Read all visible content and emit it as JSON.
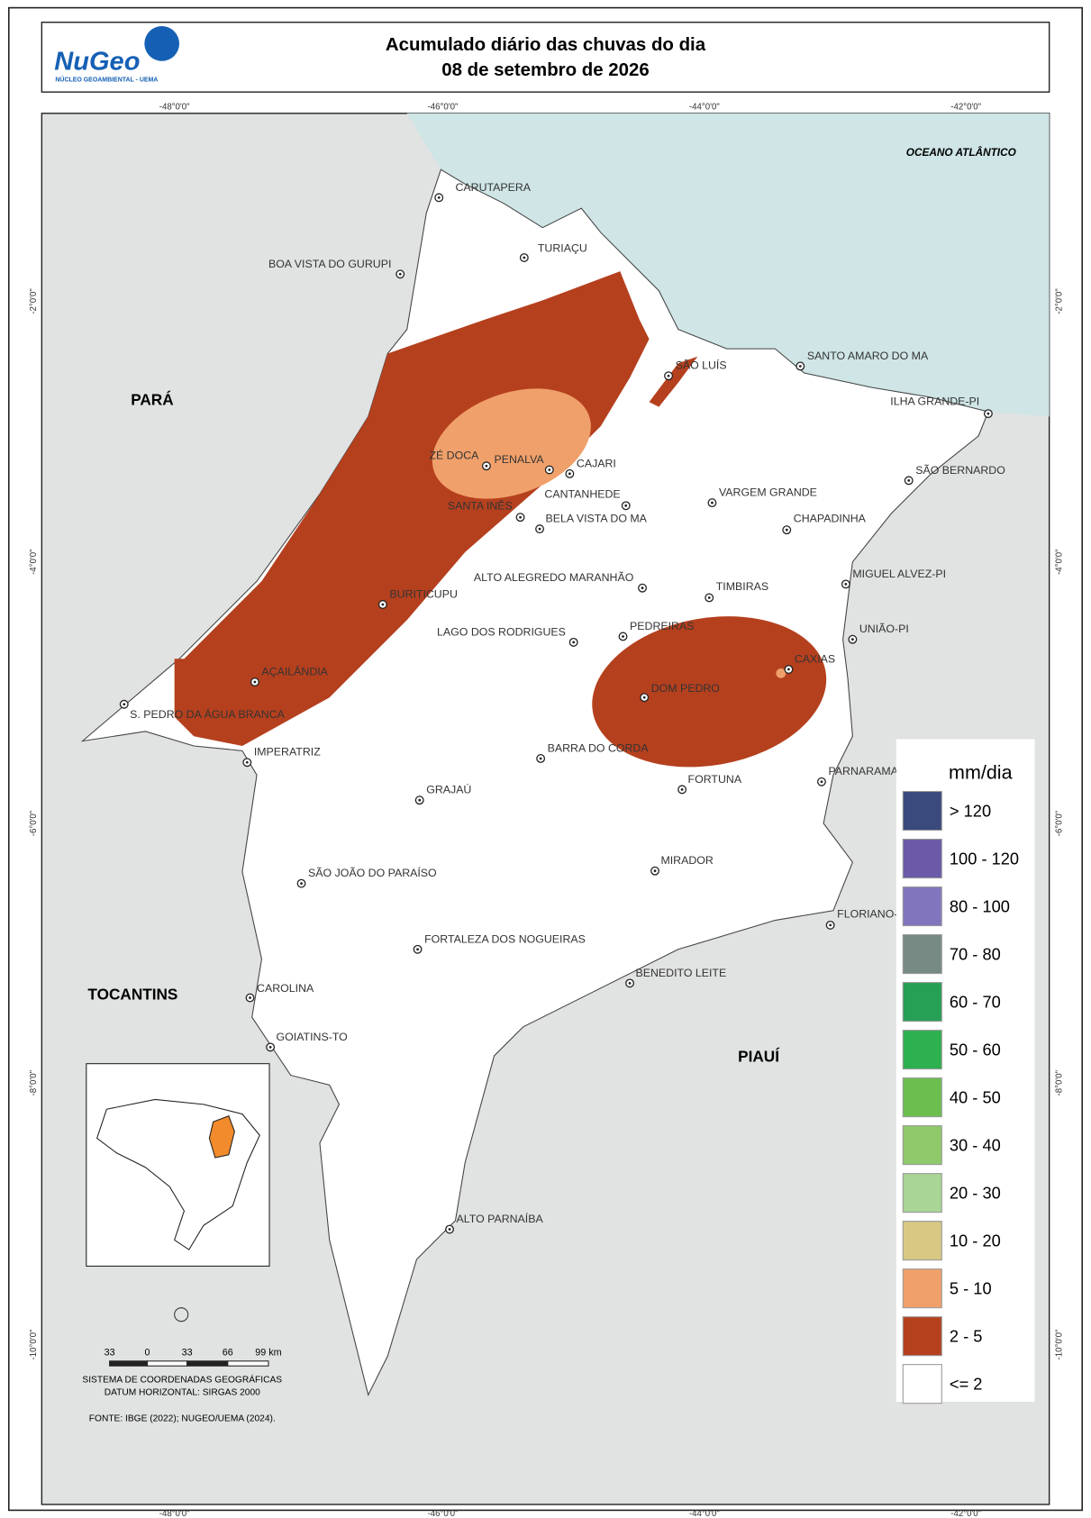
{
  "header": {
    "logo": "NuGeo",
    "logo_subtitle": "NÚCLEO GEOAMBIENTAL - UEMA",
    "title": "Acumulado diário das chuvas do dia",
    "subtitle": "08 de setembro de 2026"
  },
  "map": {
    "ocean_label": "OCEANO ATLÂNTICO",
    "regions": [
      "PARÁ",
      "TOCANTINS",
      "PIAUÍ"
    ],
    "cities": [
      "CARUTAPERA",
      "TURIAÇU",
      "BOA VISTA DO GURUPI",
      "SÃO LUÍS",
      "SANTO AMARO DO MA",
      "ILHA GRANDE-PI",
      "SÃO BERNARDO",
      "ZÉ DOCA",
      "PENALVA",
      "CAJARI",
      "CANTANHEDE",
      "VARGEM GRANDE",
      "SANTA INÊS",
      "BELA VISTA DO MA",
      "CHAPADINHA",
      "ALTO ALEGREDO MARANHÃO",
      "TIMBIRAS",
      "MIGUEL ALVEZ-PI",
      "BURITICUPU",
      "LAGO DOS RODRIGUES",
      "PEDREIRAS",
      "UNIÃO-PI",
      "CAXIAS",
      "AÇAILÂNDIA",
      "DOM PEDRO",
      "S. PEDRO DA ÁGUA BRANCA",
      "IMPERATRIZ",
      "BARRA DO CORDA",
      "PARNARAMA",
      "FORTUNA",
      "GRAJAÚ",
      "MIRADOR",
      "SÃO JOÃO DO PARAÍSO",
      "FLORIANO-",
      "FORTALEZA DOS NOGUEIRAS",
      "BENEDITO LEITE",
      "CAROLINA",
      "GOIATINS-TO",
      "ALTO PARNAÍBA"
    ]
  },
  "grid": {
    "longitudes": [
      "-48°0'0\"",
      "-46°0'0\"",
      "-44°0'0\"",
      "-42°0'0\""
    ],
    "latitudes": [
      "-2°0'0\"",
      "-4°0'0\"",
      "-6°0'0\"",
      "-8°0'0\"",
      "-10°0'0\""
    ]
  },
  "legend": {
    "title": "mm/dia",
    "items": [
      {
        "label": "> 120",
        "color": "#3a4a7c"
      },
      {
        "label": "100 - 120",
        "color": "#6a5aa8"
      },
      {
        "label": "80 - 100",
        "color": "#8176bd"
      },
      {
        "label": "70 - 80",
        "color": "#778a84"
      },
      {
        "label": "60 - 70",
        "color": "#25a055"
      },
      {
        "label": "50 - 60",
        "color": "#2db04f"
      },
      {
        "label": "40 - 50",
        "color": "#6cbf4e"
      },
      {
        "label": "30 - 40",
        "color": "#8fc96b"
      },
      {
        "label": "20 - 30",
        "color": "#a9d596"
      },
      {
        "label": "10 - 20",
        "color": "#d8c884"
      },
      {
        "label": "5 - 10",
        "color": "#f0a06a"
      },
      {
        "label": "2 - 5",
        "color": "#b5401e"
      },
      {
        "label": "<= 2",
        "color": "#ffffff"
      }
    ]
  },
  "scale_bar": {
    "labels": [
      "33",
      "0",
      "33",
      "66",
      "99 km"
    ]
  },
  "notes": [
    "SISTEMA DE COORDENADAS GEOGRÁFICAS",
    "DATUM HORIZONTAL: SIRGAS 2000",
    "FONTE: IBGE (2022); NUGEO/UEMA (2024)."
  ]
}
